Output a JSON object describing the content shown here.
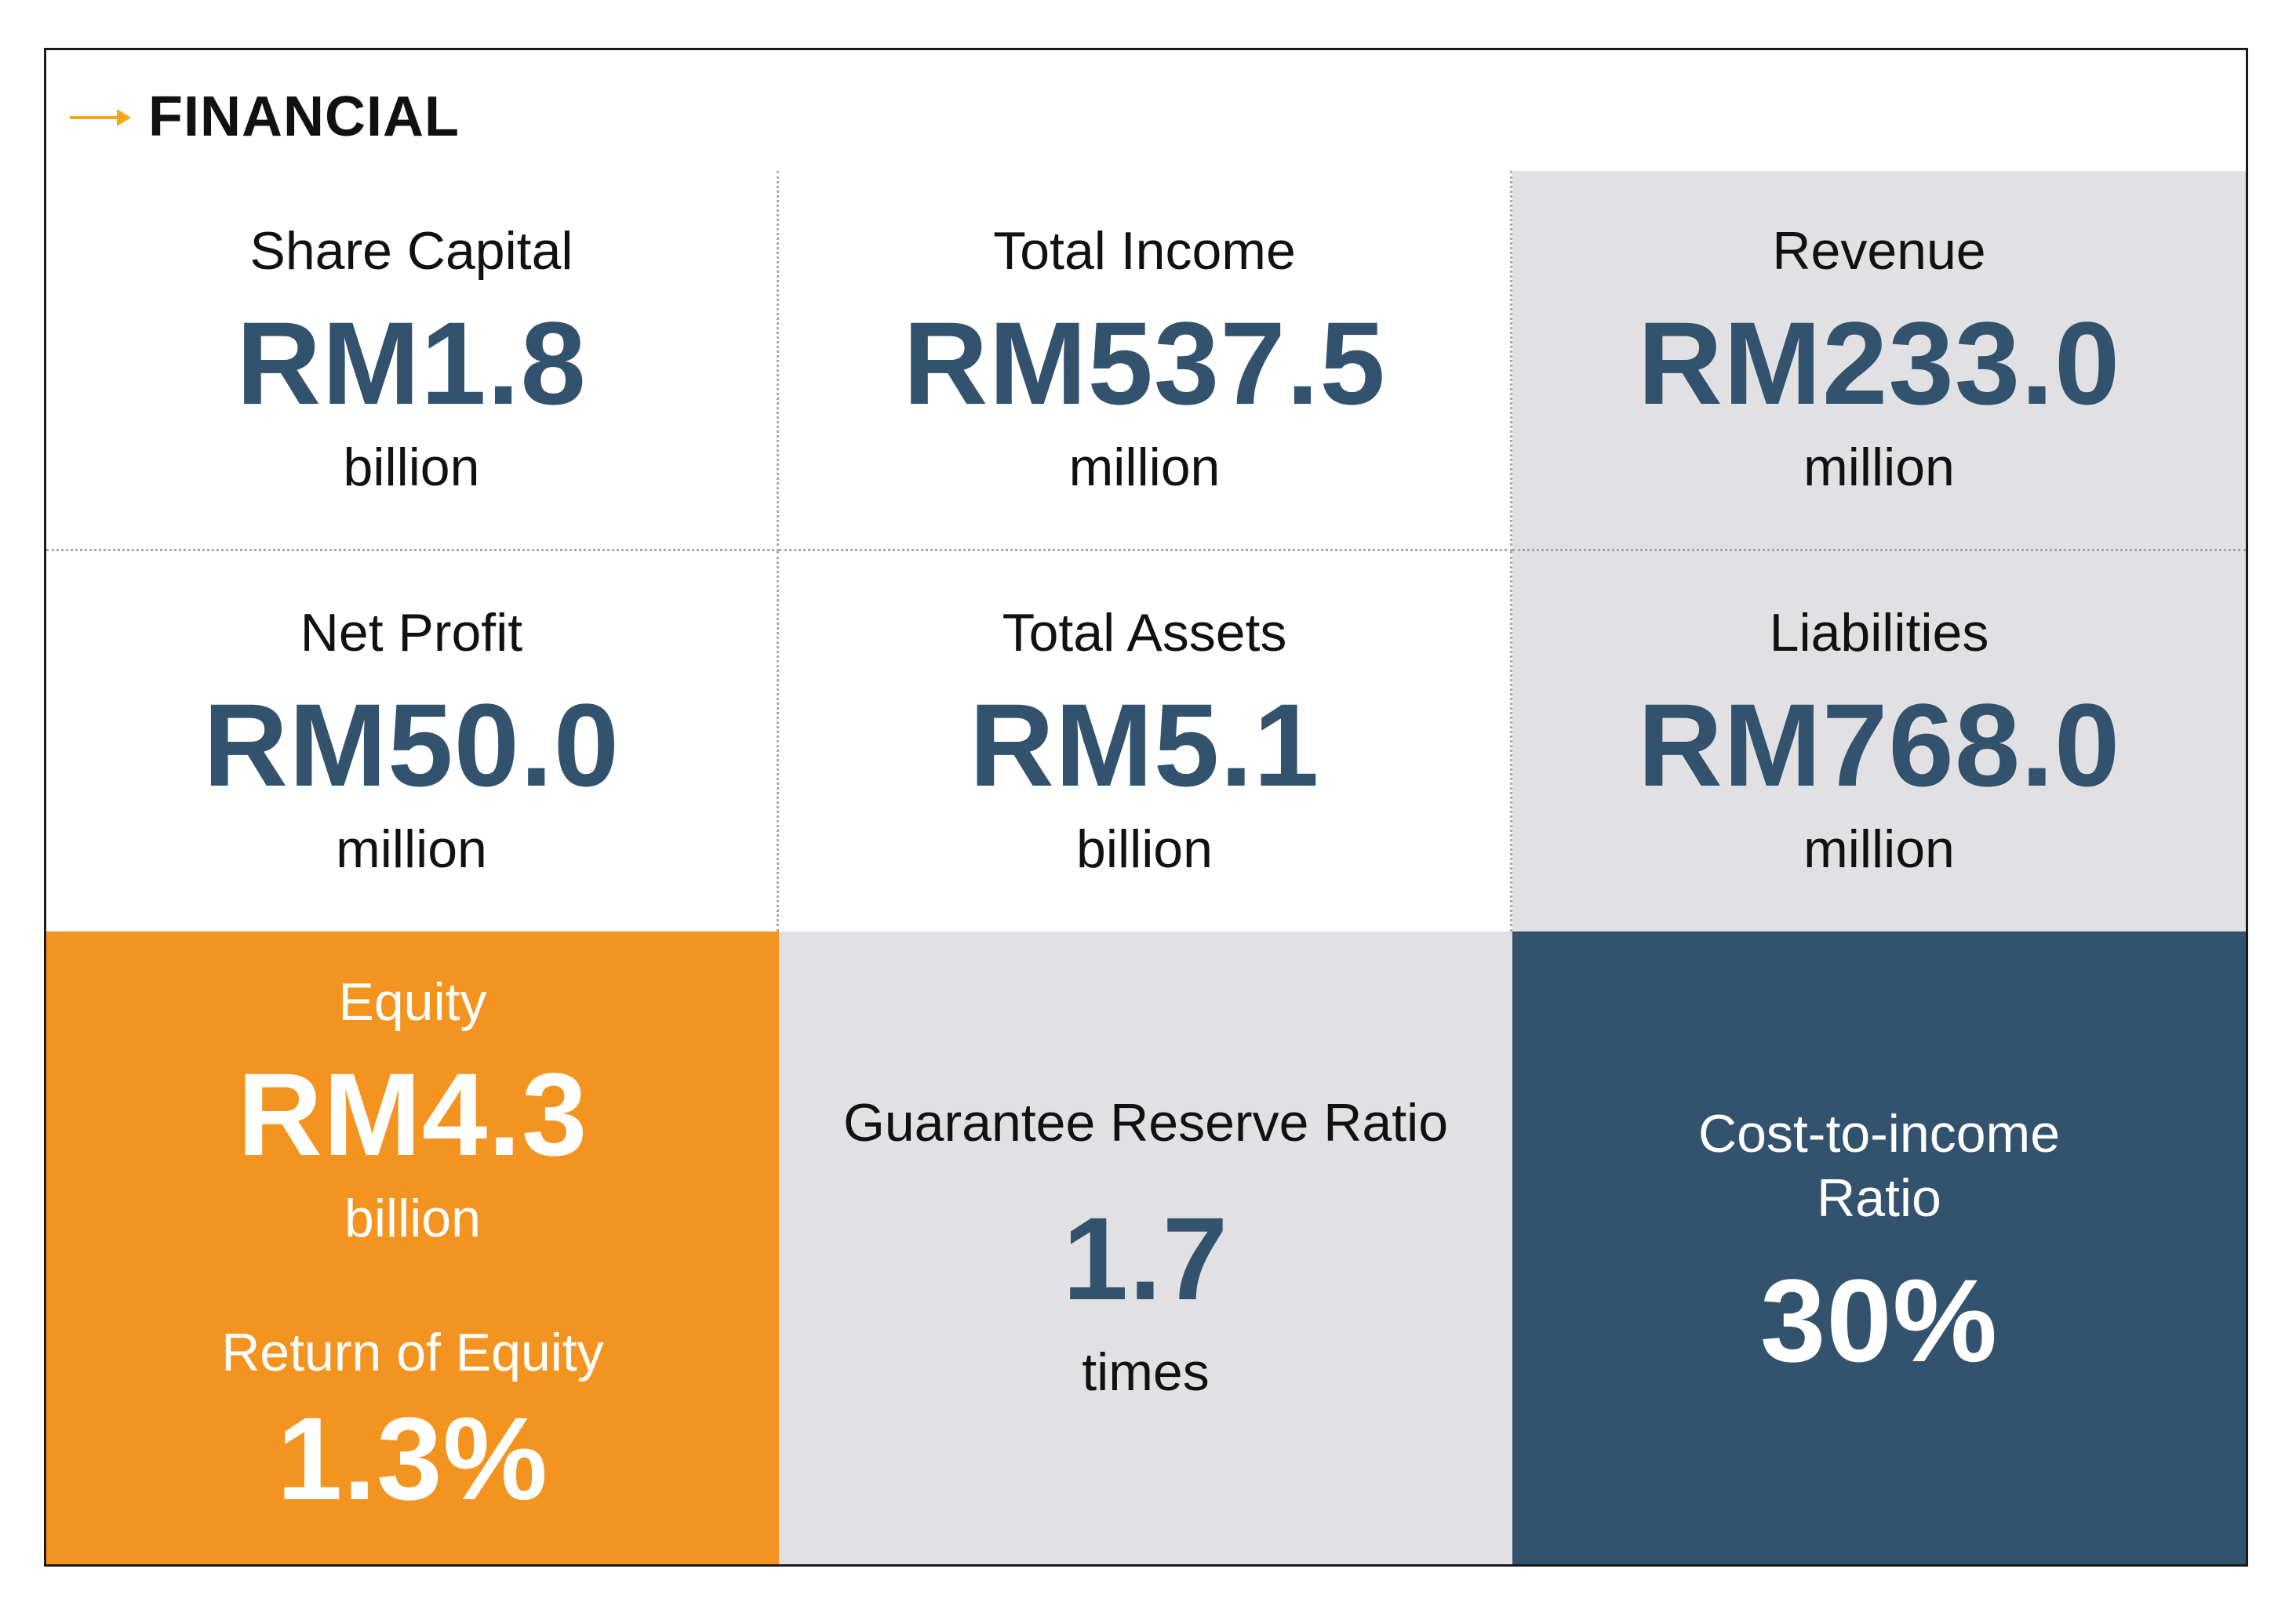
{
  "header": {
    "title": "FINANCIAL",
    "icon": "arrow-right-icon",
    "accent": "#f4a71c"
  },
  "colors": {
    "navy": "#33526e",
    "orange": "#f39421",
    "grey": "#e1e1e3"
  },
  "cells": {
    "share_capital": {
      "label": "Share Capital",
      "value": "RM1.8",
      "unit": "billion"
    },
    "total_income": {
      "label": "Total Income",
      "value": "RM537.5",
      "unit": "million"
    },
    "revenue": {
      "label": "Revenue",
      "value": "RM233.0",
      "unit": "million"
    },
    "net_profit": {
      "label": "Net Profit",
      "value": "RM50.0",
      "unit": "million"
    },
    "total_assets": {
      "label": "Total Assets",
      "value": "RM5.1",
      "unit": "billion"
    },
    "liabilities": {
      "label": "Liabilities",
      "value": "RM768.0",
      "unit": "million"
    },
    "equity": {
      "label": "Equity",
      "value": "RM4.3",
      "unit": "billion",
      "roe_label": "Return of Equity",
      "roe_value": "1.3%"
    },
    "guarantee_reserve_ratio": {
      "label": "Guarantee Reserve Ratio",
      "value": "1.7",
      "unit": "times"
    },
    "cost_to_income": {
      "label_line1": "Cost-to-income",
      "label_line2": "Ratio",
      "value": "30%"
    }
  }
}
